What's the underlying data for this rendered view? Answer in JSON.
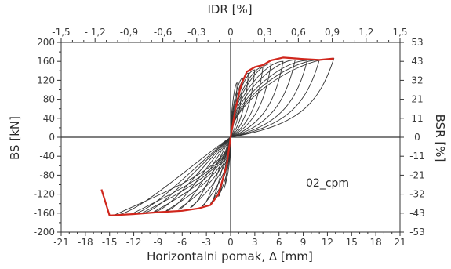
{
  "chart_data": {
    "type": "line",
    "annotation": "02_cpm",
    "xlabel": "Horizontalni pomak, Δ [mm]",
    "ylabel": "BS [kN]",
    "x2label": "IDR [%]",
    "y2label": "BSR [%]",
    "xlim": [
      -21,
      21
    ],
    "ylim": [
      -200,
      200
    ],
    "x2lim": [
      -1.5,
      1.5
    ],
    "grid": false,
    "xticks": [
      "-21",
      "-18",
      "-15",
      "-12",
      "-9",
      "-6",
      "-3",
      "0",
      "3",
      "6",
      "9",
      "12",
      "15",
      "18",
      "21"
    ],
    "yticks": [
      "200",
      "160",
      "120",
      "80",
      "40",
      "0",
      "-40",
      "-80",
      "-120",
      "-160",
      "-200"
    ],
    "x2ticks": [
      "-1,5",
      "- 1,2",
      "-0,9",
      "-0,6",
      "-0,3",
      "0",
      "0,3",
      "0,6",
      "0,9",
      "1,2",
      "1,5"
    ],
    "y2ticks": [
      "53",
      "43",
      "32",
      "21",
      "11",
      "0",
      "-11",
      "-21",
      "-32",
      "-43",
      "-53"
    ],
    "colors": {
      "envelope": "#d0261c",
      "loops": "#333333",
      "axes": "#333333"
    },
    "envelope": {
      "x": [
        -16,
        -15,
        -12,
        -9,
        -6,
        -4,
        -2.5,
        -1.5,
        -0.5,
        0,
        0.6,
        1.3,
        2,
        3,
        4,
        5,
        6.5,
        9,
        11,
        12.8
      ],
      "y": [
        -110,
        -165,
        -162,
        -158,
        -155,
        -150,
        -143,
        -120,
        -60,
        0,
        60,
        110,
        138,
        148,
        152,
        162,
        168,
        165,
        163,
        166
      ]
    },
    "loop_peaks": [
      {
        "x": 0.8,
        "y": 115
      },
      {
        "x": 1.5,
        "y": 125
      },
      {
        "x": 2.2,
        "y": 135
      },
      {
        "x": 3,
        "y": 142
      },
      {
        "x": 4,
        "y": 148
      },
      {
        "x": 5,
        "y": 155
      },
      {
        "x": 6.5,
        "y": 160
      },
      {
        "x": 8,
        "y": 163
      },
      {
        "x": 9.5,
        "y": 162
      },
      {
        "x": 11,
        "y": 163
      },
      {
        "x": 12.8,
        "y": 166
      }
    ],
    "loop_troughs": [
      {
        "x": -0.8,
        "y": -108
      },
      {
        "x": -1.5,
        "y": -125
      },
      {
        "x": -2.5,
        "y": -140
      },
      {
        "x": -3.5,
        "y": -145
      },
      {
        "x": -5,
        "y": -148
      },
      {
        "x": -6.5,
        "y": -152
      },
      {
        "x": -8,
        "y": -155
      },
      {
        "x": -9.5,
        "y": -157
      },
      {
        "x": -11,
        "y": -160
      },
      {
        "x": -12.3,
        "y": -162
      },
      {
        "x": -14.5,
        "y": -165
      }
    ]
  }
}
